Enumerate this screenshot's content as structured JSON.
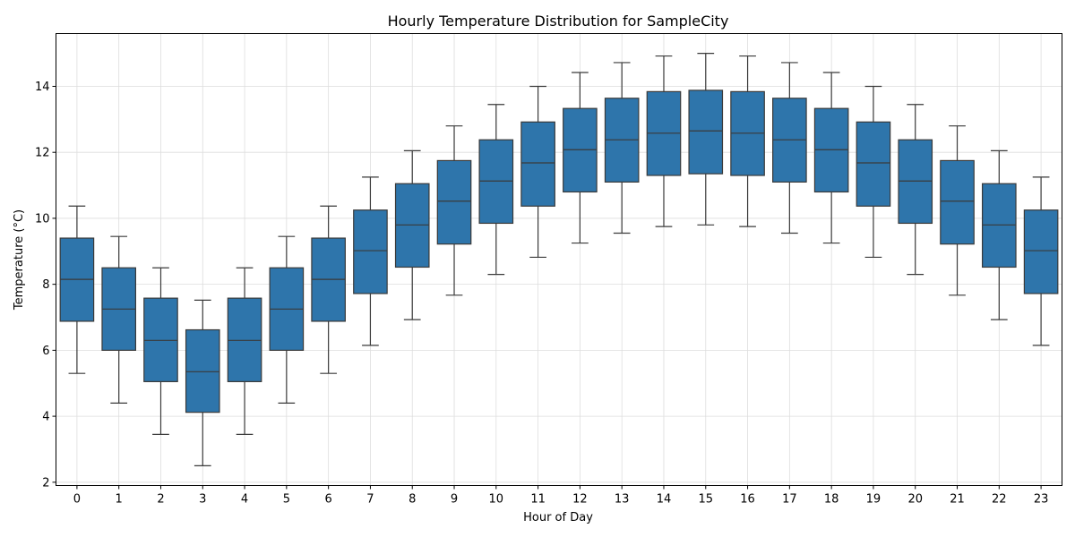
{
  "chart_data": {
    "type": "box",
    "title": "Hourly Temperature Distribution for SampleCity",
    "xlabel": "Hour of Day",
    "ylabel": "Temperature (°C)",
    "categories": [
      "0",
      "1",
      "2",
      "3",
      "4",
      "5",
      "6",
      "7",
      "8",
      "9",
      "10",
      "11",
      "12",
      "13",
      "14",
      "15",
      "16",
      "17",
      "18",
      "19",
      "20",
      "21",
      "22",
      "23"
    ],
    "ylim": [
      1.9,
      15.6
    ],
    "yticks": [
      2,
      4,
      6,
      8,
      10,
      12,
      14
    ],
    "grid": true,
    "box_color": "#2e75ab",
    "line_color": "#3a3a3a",
    "boxes": [
      {
        "whislo": 5.3,
        "q1": 6.88,
        "med": 8.15,
        "q3": 9.4,
        "whishi": 10.37
      },
      {
        "whislo": 4.4,
        "q1": 6.0,
        "med": 7.25,
        "q3": 8.5,
        "whishi": 9.45
      },
      {
        "whislo": 3.45,
        "q1": 5.05,
        "med": 6.3,
        "q3": 7.58,
        "whishi": 8.5
      },
      {
        "whislo": 2.5,
        "q1": 4.12,
        "med": 5.35,
        "q3": 6.62,
        "whishi": 7.52
      },
      {
        "whislo": 3.45,
        "q1": 5.05,
        "med": 6.3,
        "q3": 7.58,
        "whishi": 8.5
      },
      {
        "whislo": 4.4,
        "q1": 6.0,
        "med": 7.25,
        "q3": 8.5,
        "whishi": 9.45
      },
      {
        "whislo": 5.3,
        "q1": 6.88,
        "med": 8.15,
        "q3": 9.4,
        "whishi": 10.37
      },
      {
        "whislo": 6.15,
        "q1": 7.72,
        "med": 9.02,
        "q3": 10.25,
        "whishi": 11.25
      },
      {
        "whislo": 6.93,
        "q1": 8.52,
        "med": 9.8,
        "q3": 11.05,
        "whishi": 12.05
      },
      {
        "whislo": 7.67,
        "q1": 9.22,
        "med": 10.52,
        "q3": 11.75,
        "whishi": 12.8
      },
      {
        "whislo": 8.3,
        "q1": 9.85,
        "med": 11.13,
        "q3": 12.38,
        "whishi": 13.45
      },
      {
        "whislo": 8.82,
        "q1": 10.37,
        "med": 11.68,
        "q3": 12.92,
        "whishi": 14.0
      },
      {
        "whislo": 9.25,
        "q1": 10.8,
        "med": 12.08,
        "q3": 13.33,
        "whishi": 14.42
      },
      {
        "whislo": 9.55,
        "q1": 11.1,
        "med": 12.38,
        "q3": 13.64,
        "whishi": 14.72
      },
      {
        "whislo": 9.75,
        "q1": 11.3,
        "med": 12.58,
        "q3": 13.84,
        "whishi": 14.92
      },
      {
        "whislo": 9.8,
        "q1": 11.35,
        "med": 12.65,
        "q3": 13.88,
        "whishi": 15.0
      },
      {
        "whislo": 9.75,
        "q1": 11.3,
        "med": 12.58,
        "q3": 13.84,
        "whishi": 14.92
      },
      {
        "whislo": 9.55,
        "q1": 11.1,
        "med": 12.38,
        "q3": 13.64,
        "whishi": 14.72
      },
      {
        "whislo": 9.25,
        "q1": 10.8,
        "med": 12.08,
        "q3": 13.33,
        "whishi": 14.42
      },
      {
        "whislo": 8.82,
        "q1": 10.37,
        "med": 11.68,
        "q3": 12.92,
        "whishi": 14.0
      },
      {
        "whislo": 8.3,
        "q1": 9.85,
        "med": 11.13,
        "q3": 12.38,
        "whishi": 13.45
      },
      {
        "whislo": 7.67,
        "q1": 9.22,
        "med": 10.52,
        "q3": 11.75,
        "whishi": 12.8
      },
      {
        "whislo": 6.93,
        "q1": 8.52,
        "med": 9.8,
        "q3": 11.05,
        "whishi": 12.05
      },
      {
        "whislo": 6.15,
        "q1": 7.72,
        "med": 9.02,
        "q3": 10.25,
        "whishi": 11.25
      }
    ]
  }
}
